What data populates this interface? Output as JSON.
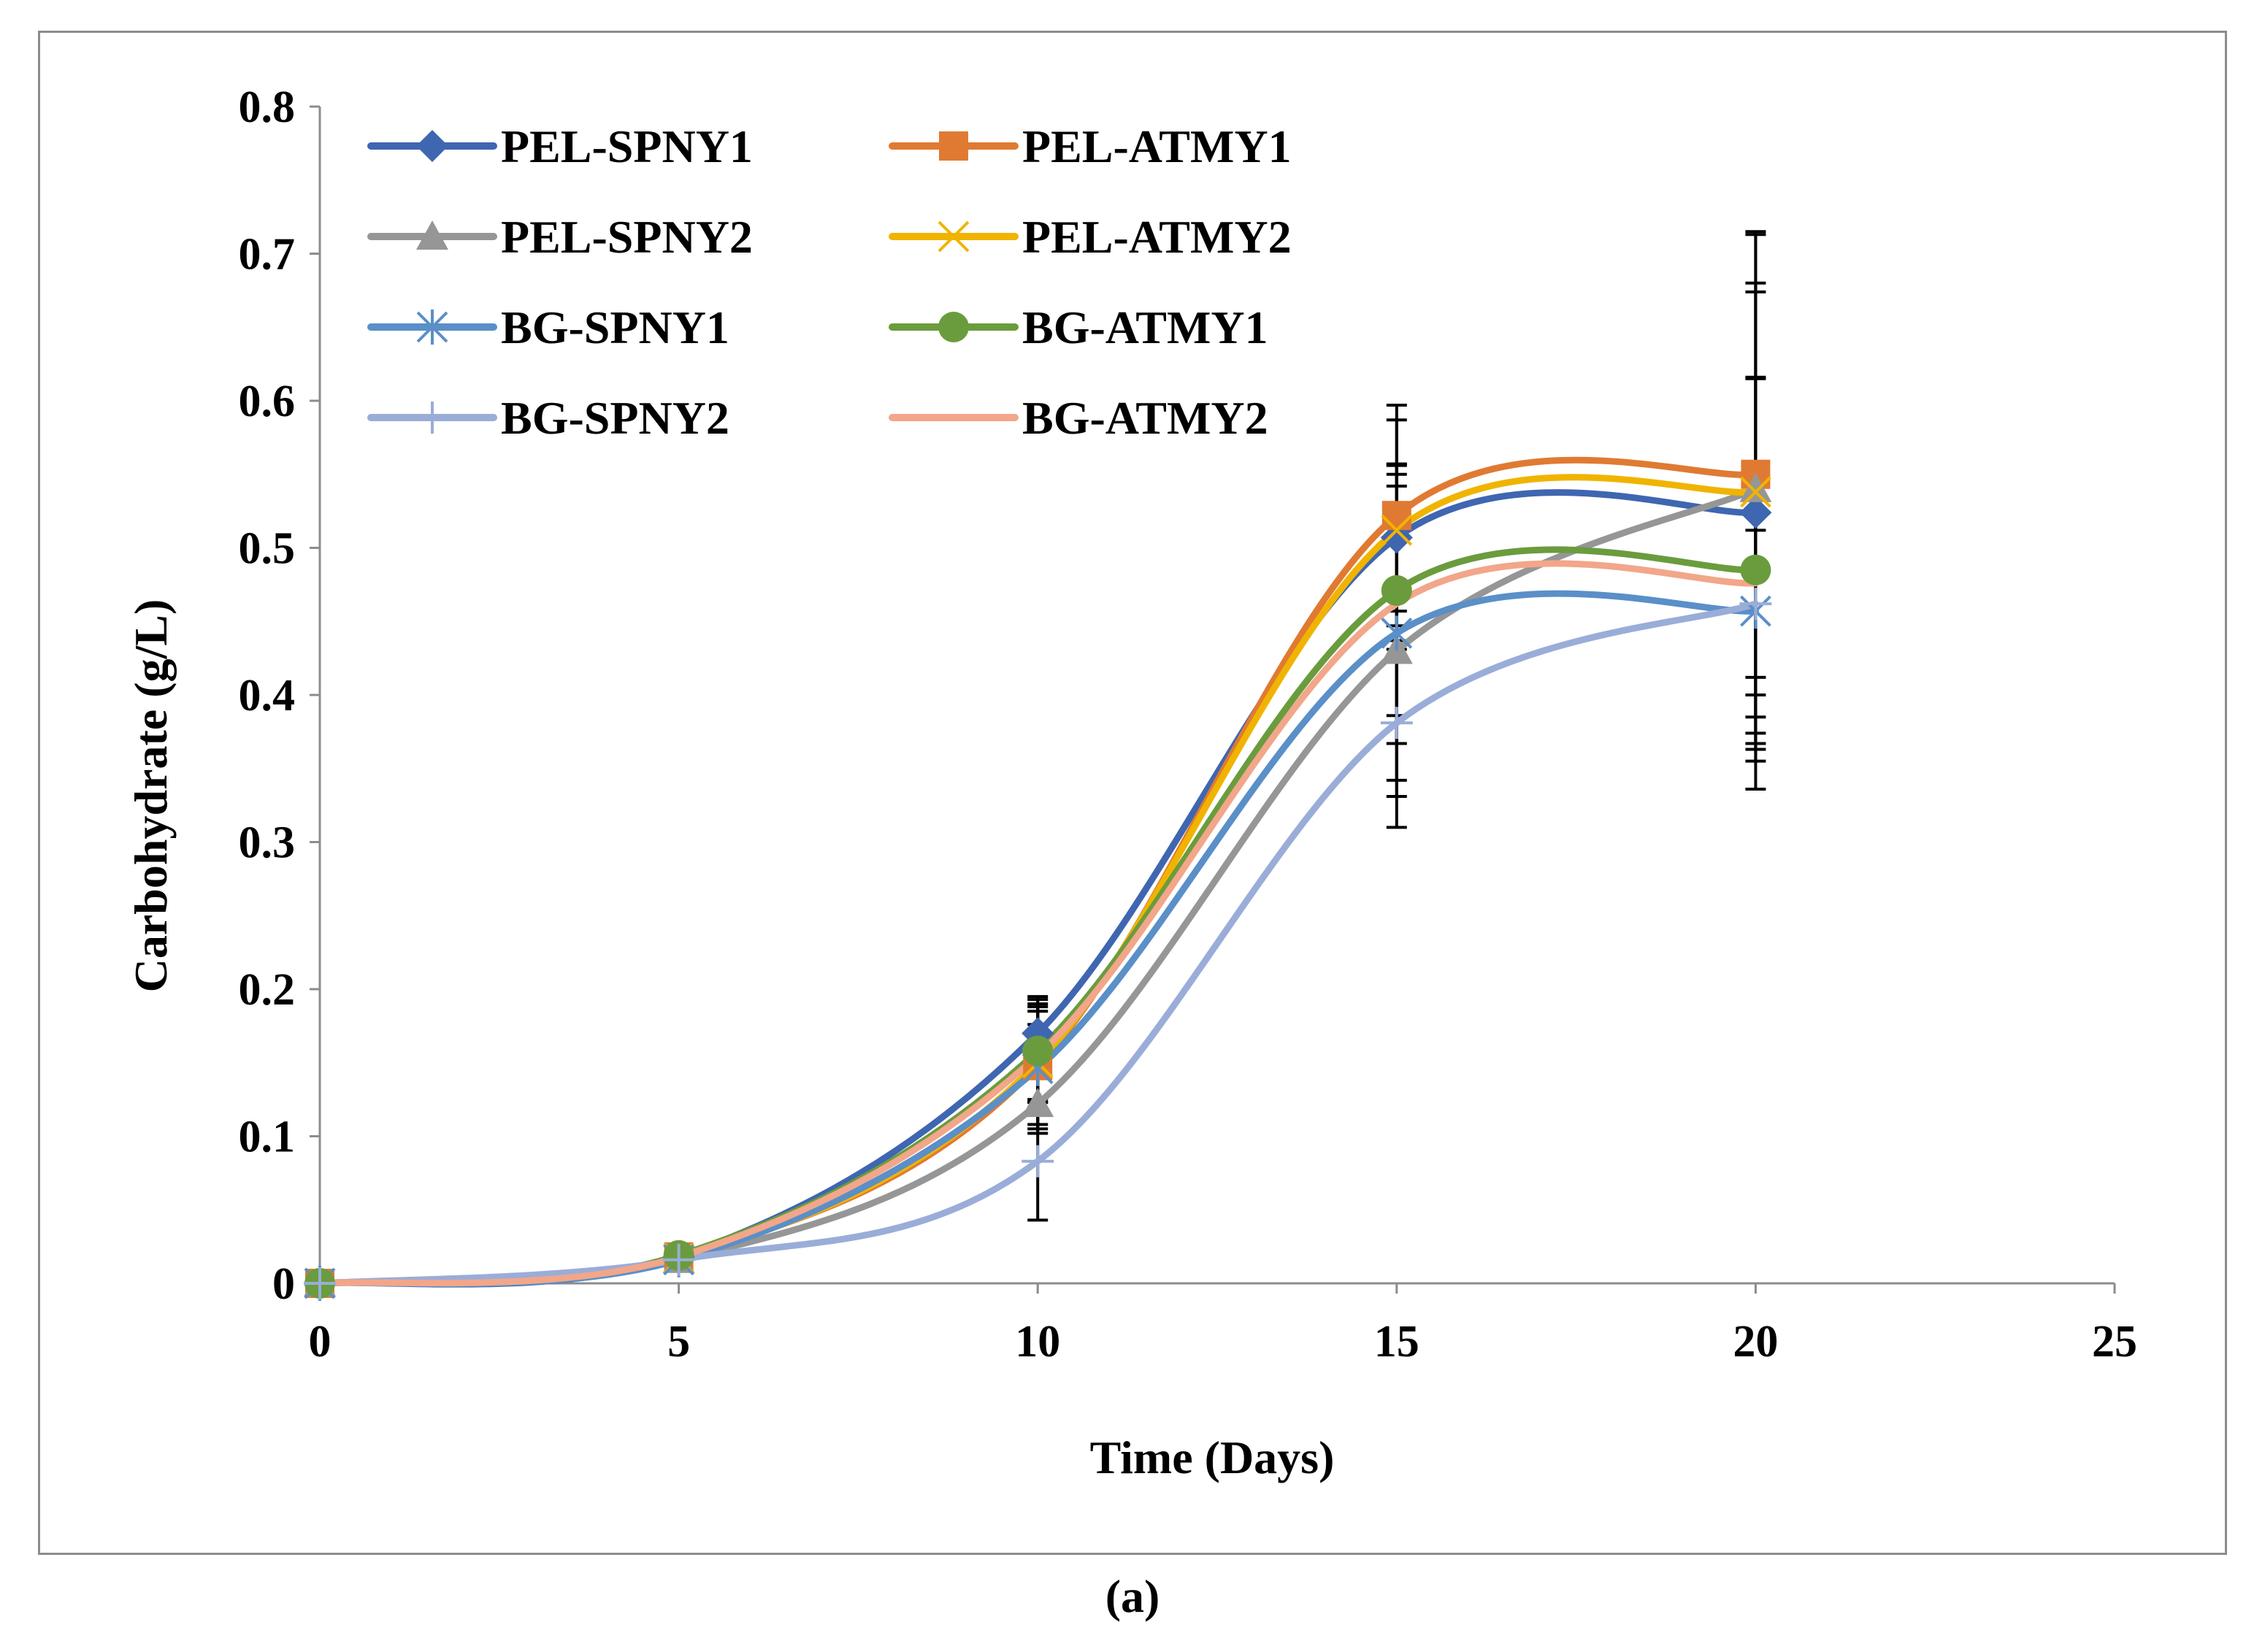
{
  "chart_data": {
    "type": "line",
    "xlabel": "Time (Days)",
    "ylabel": "Carbohydrate  (g/L)",
    "xlim": [
      0,
      25
    ],
    "ylim": [
      0,
      0.8
    ],
    "xticks": [
      0,
      5,
      10,
      15,
      20,
      25
    ],
    "yticks": [
      0,
      0.1,
      0.2,
      0.3,
      0.4,
      0.5,
      0.6,
      0.7,
      0.8
    ],
    "grid": false,
    "legend_position": "top-left",
    "x": [
      0,
      5,
      10,
      15,
      20
    ],
    "series": [
      {
        "name": "PEL-SPNY1",
        "color": "#3f66b0",
        "marker": "diamond",
        "values": [
          0,
          0.018,
          0.17,
          0.507,
          0.524
        ],
        "err": [
          0,
          0,
          0.02,
          0.05,
          0.15
        ]
      },
      {
        "name": "PEL-ATMY1",
        "color": "#e07a32",
        "marker": "square",
        "values": [
          0,
          0.018,
          0.148,
          0.522,
          0.55
        ],
        "err": [
          0,
          0,
          0.04,
          0.075,
          0.165
        ]
      },
      {
        "name": "PEL-SPNY2",
        "color": "#969696",
        "marker": "triangle",
        "values": [
          0,
          0.016,
          0.122,
          0.43,
          0.54
        ],
        "err": [
          0,
          0,
          0.02,
          0.12,
          0.14
        ]
      },
      {
        "name": "PEL-ATMY2",
        "color": "#f0b400",
        "marker": "x",
        "values": [
          0,
          0.017,
          0.15,
          0.512,
          0.538
        ],
        "err": [
          0,
          0,
          0.045,
          0.075,
          0.175
        ]
      },
      {
        "name": "BG-SPNY1",
        "color": "#5a8fc8",
        "marker": "asterisk",
        "values": [
          0,
          0.016,
          0.146,
          0.442,
          0.457
        ],
        "err": [
          0,
          0,
          0.03,
          0.1,
          0.09
        ]
      },
      {
        "name": "BG-ATMY1",
        "color": "#6a9c3d",
        "marker": "circle",
        "values": [
          0,
          0.019,
          0.158,
          0.471,
          0.485
        ],
        "err": [
          0,
          0,
          0.035,
          0.085,
          0.13
        ]
      },
      {
        "name": "BG-SPNY2",
        "color": "#9aadd8",
        "marker": "plus",
        "values": [
          0,
          0.016,
          0.083,
          0.381,
          0.462
        ],
        "err": [
          0,
          0,
          0.04,
          0.05,
          0.05
        ]
      },
      {
        "name": "BG-ATMY2",
        "color": "#f2a68a",
        "marker": "none",
        "values": [
          0,
          0.018,
          0.155,
          0.462,
          0.476
        ],
        "err": [
          0,
          0,
          0.03,
          0.095,
          0.14
        ]
      }
    ]
  },
  "caption": "(a)"
}
